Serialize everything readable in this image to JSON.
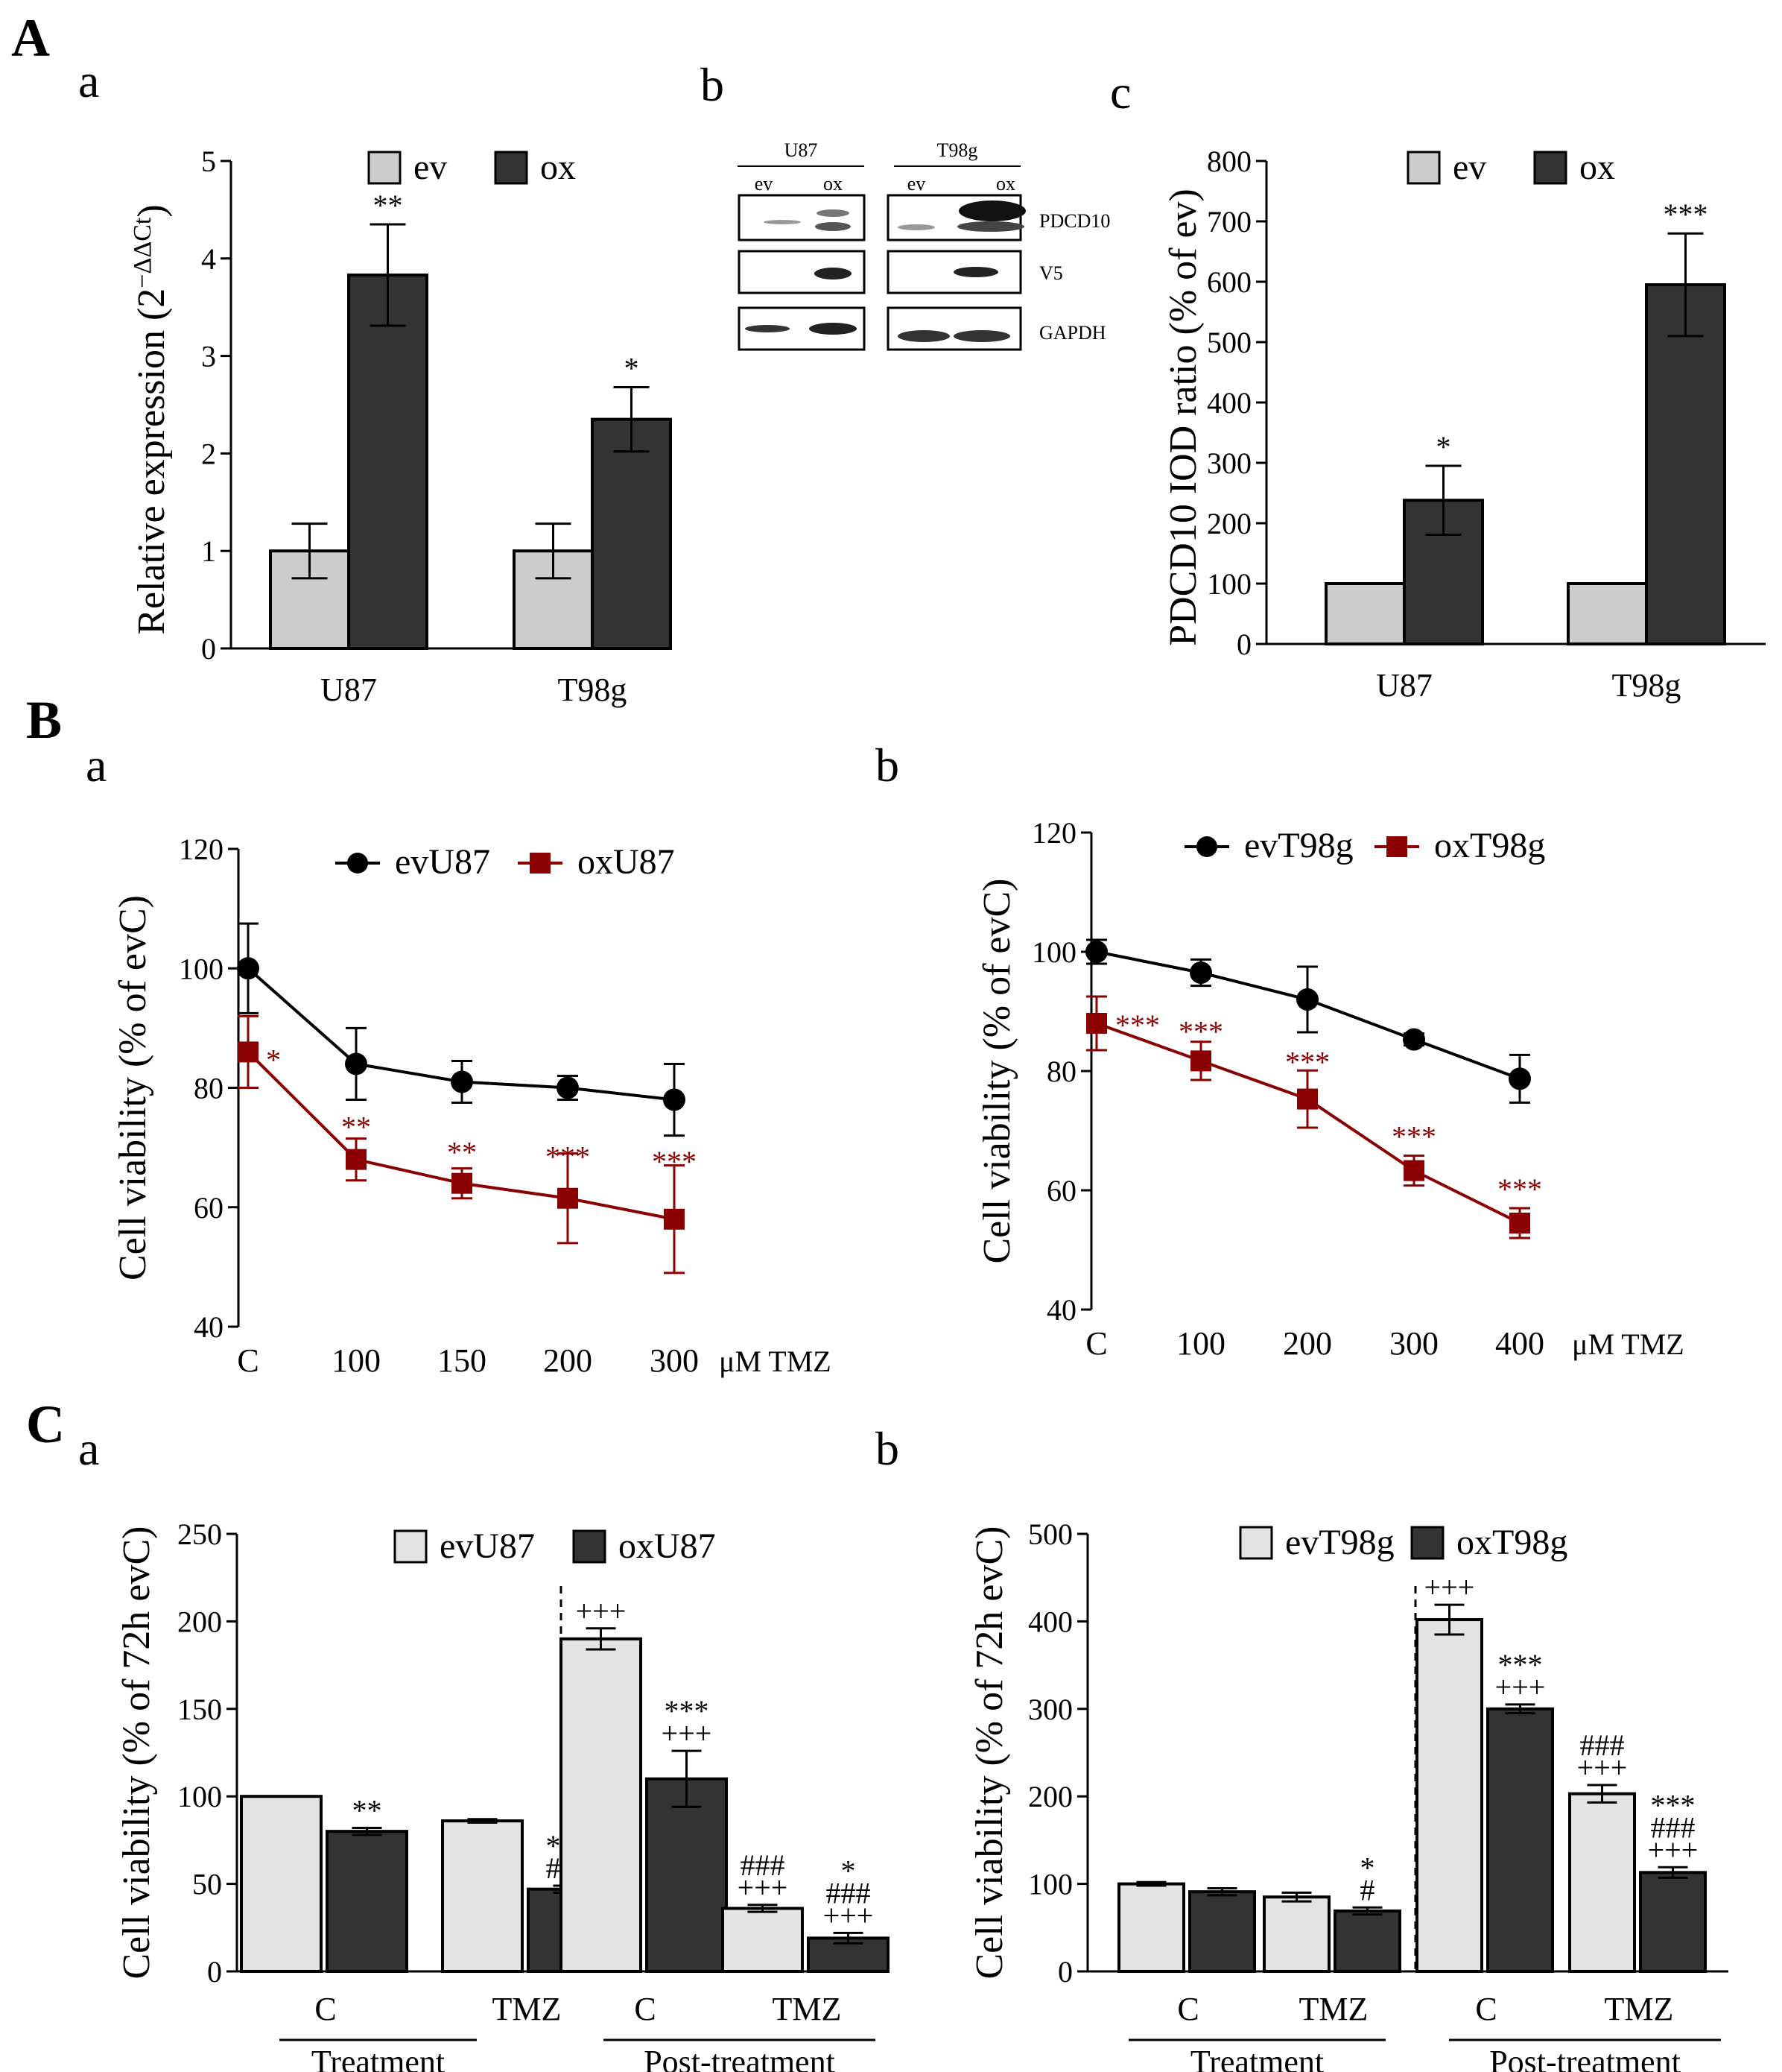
{
  "colors": {
    "ev_bar": "#cccccc",
    "ox_bar": "#333333",
    "ev_bar_C": "#e3e3e3",
    "ev_line": "#000000",
    "ox_line": "#8b0000"
  },
  "panels": {
    "A": "A",
    "A_a": "a",
    "A_b": "b",
    "A_c": "c",
    "B": "B",
    "B_a": "a",
    "B_b": "b",
    "C": "C",
    "C_a": "a",
    "C_b": "b"
  },
  "blot": {
    "groups": [
      "U87",
      "T98g"
    ],
    "lanes": [
      "ev",
      "ox",
      "ev",
      "ox"
    ],
    "proteins": [
      "PDCD10",
      "V5",
      "GAPDH"
    ]
  },
  "chart_data": [
    {
      "id": "Aa",
      "type": "bar",
      "ylabel": "Relative expression (2",
      "ylabel_sup": "−ΔΔCt",
      "ylabel_close": ")",
      "categories": [
        "U87",
        "T98g"
      ],
      "series": [
        {
          "name": "ev",
          "values": [
            1.0,
            1.0
          ],
          "errors": [
            0.28,
            0.28
          ]
        },
        {
          "name": "ox",
          "values": [
            3.83,
            2.35
          ],
          "errors": [
            0.52,
            0.33
          ]
        }
      ],
      "significance": {
        "ox": [
          "**",
          "*"
        ]
      },
      "ylim": [
        0,
        5
      ],
      "yticks": [
        0,
        1,
        2,
        3,
        4,
        5
      ]
    },
    {
      "id": "Ac",
      "type": "bar",
      "ylabel": "PDCD10 IOD ratio (% of ev)",
      "categories": [
        "U87",
        "T98g"
      ],
      "series": [
        {
          "name": "ev",
          "values": [
            100,
            100
          ],
          "errors": [
            0,
            0
          ]
        },
        {
          "name": "ox",
          "values": [
            238,
            595
          ],
          "errors": [
            57,
            85
          ]
        }
      ],
      "significance": {
        "ox": [
          "*",
          "***"
        ]
      },
      "ylim": [
        0,
        800
      ],
      "yticks": [
        0,
        100,
        200,
        300,
        400,
        500,
        600,
        700,
        800
      ]
    },
    {
      "id": "Ba",
      "type": "line",
      "ylabel": "Cell viability (% of evC)",
      "x": [
        "C",
        "100",
        "150",
        "200",
        "300"
      ],
      "xunit": "μM TMZ",
      "series": [
        {
          "name": "evU87",
          "values": [
            100,
            84,
            81,
            80,
            78
          ],
          "errors": [
            7.5,
            6,
            3.5,
            2,
            6
          ]
        },
        {
          "name": "oxU87",
          "values": [
            86,
            68,
            64,
            61.5,
            58
          ],
          "errors": [
            6,
            3.5,
            2.5,
            7.5,
            9
          ]
        }
      ],
      "significance": {
        "oxU87": [
          "*",
          "**",
          "**",
          "***",
          "***"
        ]
      },
      "ylim": [
        40,
        120
      ],
      "yticks": [
        40,
        60,
        80,
        100,
        120
      ]
    },
    {
      "id": "Bb",
      "type": "line",
      "ylabel": "Cell viability (% of evC)",
      "x": [
        "C",
        "100",
        "200",
        "300",
        "400"
      ],
      "xunit": "μM TMZ",
      "series": [
        {
          "name": "evT98g",
          "values": [
            100,
            96.5,
            92,
            85.3,
            78.7
          ],
          "errors": [
            2,
            2.2,
            5.5,
            1,
            4
          ]
        },
        {
          "name": "oxT98g",
          "values": [
            88,
            81.7,
            75.3,
            63.3,
            54.5
          ],
          "errors": [
            4.5,
            3.2,
            4.8,
            2.5,
            2.5
          ]
        }
      ],
      "significance": {
        "oxT98g": [
          "***",
          "***",
          "***",
          "***",
          "***"
        ]
      },
      "ylim": [
        40,
        120
      ],
      "yticks": [
        40,
        60,
        80,
        100,
        120
      ]
    },
    {
      "id": "Ca",
      "type": "bar",
      "ylabel": "Cell viability (% of 72h evC)",
      "categories": [
        "C",
        "TMZ",
        "C",
        "TMZ"
      ],
      "groups": [
        "Treatment",
        "Post-treatment"
      ],
      "series": [
        {
          "name": "evU87",
          "values": [
            100,
            86,
            190,
            36
          ],
          "errors": [
            0,
            1,
            6,
            2
          ]
        },
        {
          "name": "oxU87",
          "values": [
            80,
            47,
            110,
            19
          ],
          "errors": [
            2,
            2,
            16,
            3
          ]
        }
      ],
      "significance": {
        "evU87": [
          "",
          "",
          "+++",
          "###\n+++"
        ],
        "oxU87": [
          "**",
          "***\n###",
          "***\n+++",
          "*\n###\n+++"
        ]
      },
      "ylim": [
        0,
        250
      ],
      "yticks": [
        0,
        50,
        100,
        150,
        200,
        250
      ]
    },
    {
      "id": "Cb",
      "type": "bar",
      "ylabel": "Cell viability (% of 72h evC)",
      "categories": [
        "C",
        "TMZ",
        "C",
        "TMZ"
      ],
      "groups": [
        "Treatment",
        "Post-treatment"
      ],
      "series": [
        {
          "name": "evT98g",
          "values": [
            100,
            85,
            402,
            203
          ],
          "errors": [
            2,
            5,
            17,
            10
          ]
        },
        {
          "name": "oxT98g",
          "values": [
            91,
            69,
            300,
            113
          ],
          "errors": [
            4,
            4,
            5,
            6
          ]
        }
      ],
      "significance": {
        "evT98g": [
          "",
          "",
          "+++",
          "###\n+++"
        ],
        "oxT98g": [
          "",
          "*\n#",
          "***\n+++",
          "***\n###\n+++"
        ]
      },
      "ylim": [
        0,
        500
      ],
      "yticks": [
        0,
        100,
        200,
        300,
        400,
        500
      ]
    }
  ]
}
